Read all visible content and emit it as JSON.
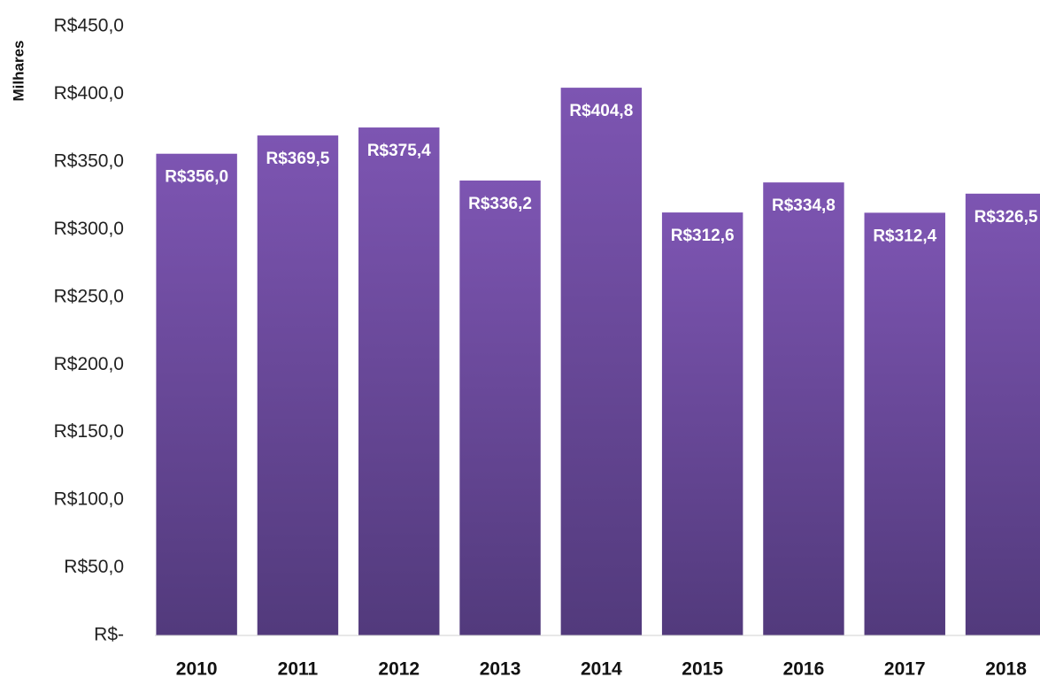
{
  "chart_data": {
    "type": "bar",
    "y_axis_label": "Milhares",
    "categories": [
      "2010",
      "2011",
      "2012",
      "2013",
      "2014",
      "2015",
      "2016",
      "2017",
      "2018"
    ],
    "values": [
      356.0,
      369.5,
      375.4,
      336.2,
      404.8,
      312.6,
      334.8,
      312.4,
      326.5
    ],
    "value_labels": [
      "R$356,0",
      "R$369,5",
      "R$375,4",
      "R$336,2",
      "R$404,8",
      "R$312,6",
      "R$334,8",
      "R$312,4",
      "R$326,5"
    ],
    "gradient": [
      "#7d55b2",
      "#523a7c"
    ],
    "ylim": [
      0,
      450
    ],
    "yticks": [
      {
        "value": 0,
        "label": "R$-"
      },
      {
        "value": 50,
        "label": "R$50,0"
      },
      {
        "value": 100,
        "label": "R$100,0"
      },
      {
        "value": 150,
        "label": "R$150,0"
      },
      {
        "value": 200,
        "label": "R$200,0"
      },
      {
        "value": 250,
        "label": "R$250,0"
      },
      {
        "value": 300,
        "label": "R$300,0"
      },
      {
        "value": 350,
        "label": "R$350,0"
      },
      {
        "value": 400,
        "label": "R$400,0"
      },
      {
        "value": 450,
        "label": "R$450,0"
      }
    ],
    "grid": false
  }
}
